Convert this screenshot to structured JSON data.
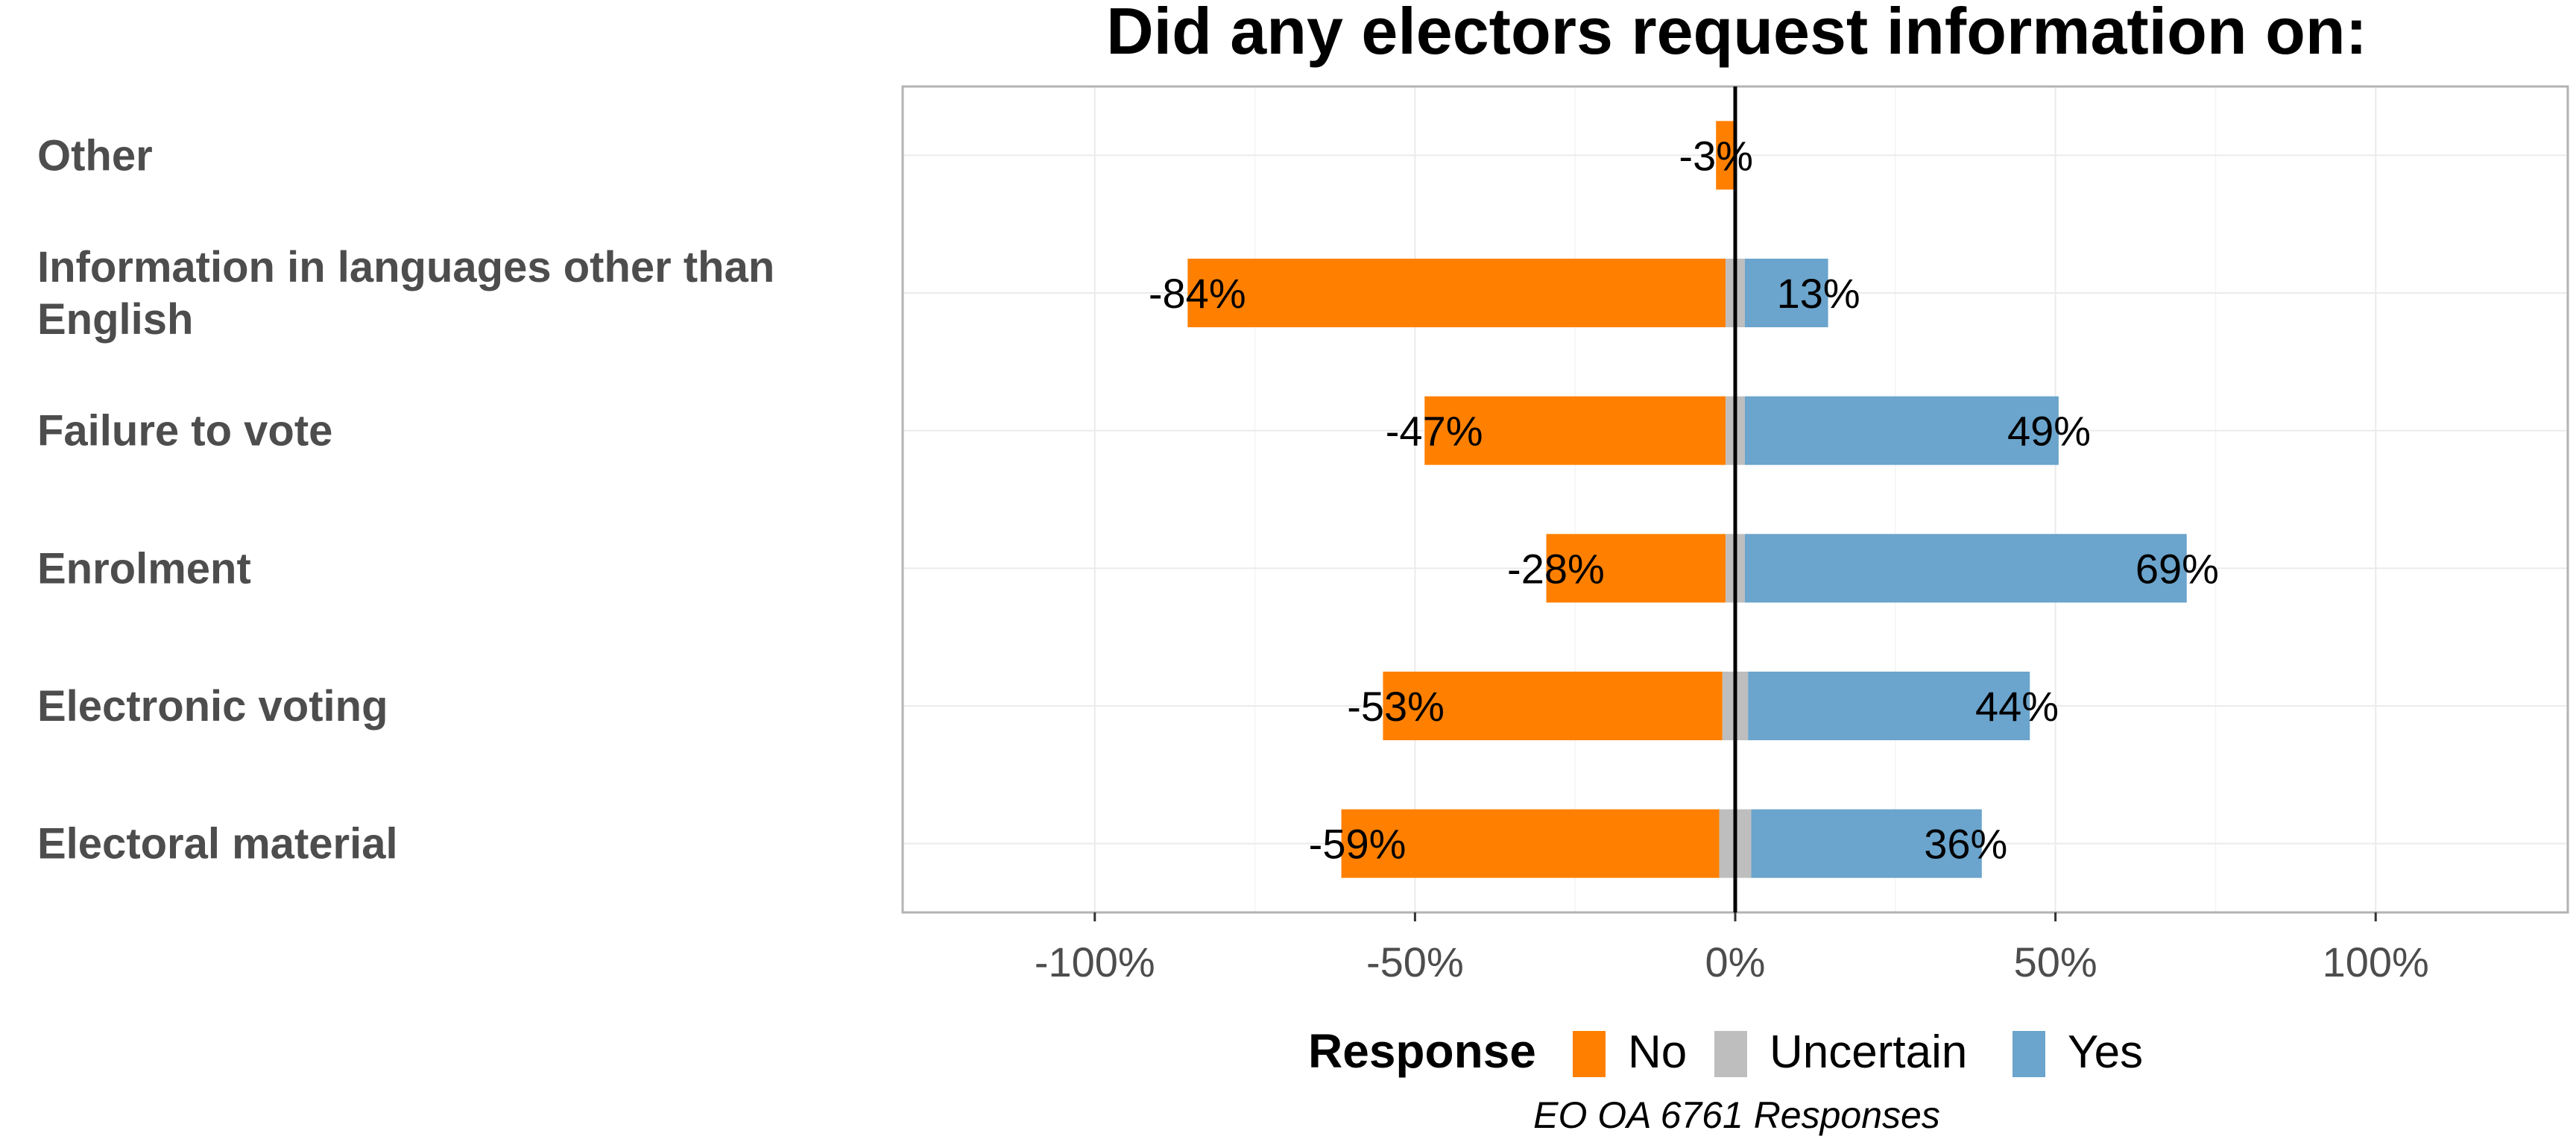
{
  "chart_data": {
    "type": "bar",
    "orientation": "horizontal",
    "stacked": "diverging",
    "title": "Did any electors request information on:",
    "categories": [
      "Other",
      "Information in languages other than English",
      "Failure to vote",
      "Enrolment",
      "Electronic voting",
      "Electoral material"
    ],
    "series": [
      {
        "name": "No",
        "color": "#ff8000",
        "values": [
          -3,
          -84,
          -47,
          -28,
          -53,
          -59
        ]
      },
      {
        "name": "Uncertain",
        "color": "#bebebe",
        "values": [
          0,
          3,
          3,
          3,
          4,
          5
        ]
      },
      {
        "name": "Yes",
        "color": "#6ba4cc",
        "values": [
          0,
          13,
          49,
          69,
          44,
          36
        ]
      }
    ],
    "labels": {
      "no": [
        "-3%",
        "-84%",
        "-47%",
        "-28%",
        "-53%",
        "-59%"
      ],
      "yes": [
        "",
        "13%",
        "49%",
        "69%",
        "44%",
        "36%"
      ]
    },
    "xlim": [
      -130,
      130
    ],
    "xticks": [
      -100,
      -50,
      0,
      50,
      100
    ],
    "xtick_labels": [
      "-100%",
      "-50%",
      "0%",
      "50%",
      "100%"
    ],
    "xlabel": "",
    "ylabel": "",
    "grid": true,
    "legend": {
      "title": "Response",
      "position": "bottom",
      "items": [
        "No",
        "Uncertain",
        "Yes"
      ]
    },
    "caption": "EO OA 6761 Responses"
  }
}
